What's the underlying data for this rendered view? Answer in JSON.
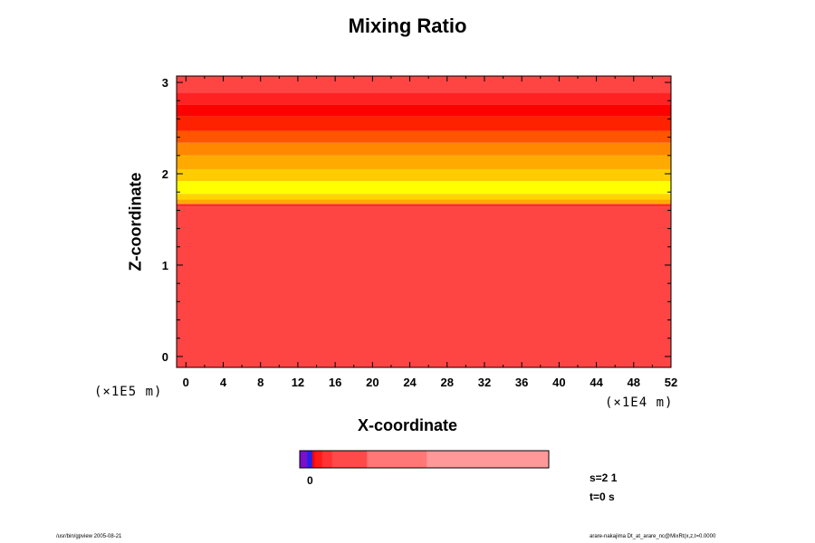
{
  "chart_data": {
    "type": "heatmap",
    "title": "Mixing Ratio",
    "xlabel": "X-coordinate",
    "ylabel": "Z-coordinate",
    "x_scale_note": "(×1E4 m)",
    "z_scale_note": "(×1E5 m)",
    "xlim": [
      -1,
      52
    ],
    "zlim": [
      -0.12,
      3.07
    ],
    "x_ticks": [
      "0",
      "4",
      "8",
      "12",
      "16",
      "20",
      "24",
      "28",
      "32",
      "36",
      "40",
      "44",
      "48",
      "52"
    ],
    "z_ticks": [
      "0",
      "1",
      "2",
      "3"
    ],
    "bands": [
      {
        "z0": -0.12,
        "z1": 1.64,
        "color": "#ff4444"
      },
      {
        "z0": 1.64,
        "z1": 1.67,
        "color": "#ff2a2a"
      },
      {
        "z0": 1.67,
        "z1": 1.72,
        "color": "#ffaa00"
      },
      {
        "z0": 1.72,
        "z1": 1.78,
        "color": "#ffd400"
      },
      {
        "z0": 1.78,
        "z1": 1.92,
        "color": "#ffff00"
      },
      {
        "z0": 1.92,
        "z1": 2.05,
        "color": "#ffcc00"
      },
      {
        "z0": 2.05,
        "z1": 2.2,
        "color": "#ffaa00"
      },
      {
        "z0": 2.2,
        "z1": 2.34,
        "color": "#ff8800"
      },
      {
        "z0": 2.34,
        "z1": 2.47,
        "color": "#ff5500"
      },
      {
        "z0": 2.47,
        "z1": 2.63,
        "color": "#ff2200"
      },
      {
        "z0": 2.63,
        "z1": 2.76,
        "color": "#ff0000"
      },
      {
        "z0": 2.76,
        "z1": 2.89,
        "color": "#ff2222"
      },
      {
        "z0": 2.89,
        "z1": 3.07,
        "color": "#ff4444"
      }
    ],
    "colorbar": {
      "label": "0",
      "segments": [
        {
          "frac": 0.03,
          "color": "#7a10c8"
        },
        {
          "frac": 0.02,
          "color": "#2222ee"
        },
        {
          "frac": 0.01,
          "color": "#ff0000"
        },
        {
          "frac": 0.03,
          "color": "#ff1a1a"
        },
        {
          "frac": 0.04,
          "color": "#ff3333"
        },
        {
          "frac": 0.14,
          "color": "#ff4a4a"
        },
        {
          "frac": 0.24,
          "color": "#ff7777"
        },
        {
          "frac": 0.49,
          "color": "#ff9999"
        }
      ]
    }
  },
  "info": {
    "s_label": "s=2 1",
    "t_label": "t=0 s"
  },
  "footer": {
    "left": "/usr/bin/gpview 2005-08-21",
    "right": "arare-nakajima Dt_at_arare_nc@MixRt(x,z,t=0.0000"
  }
}
